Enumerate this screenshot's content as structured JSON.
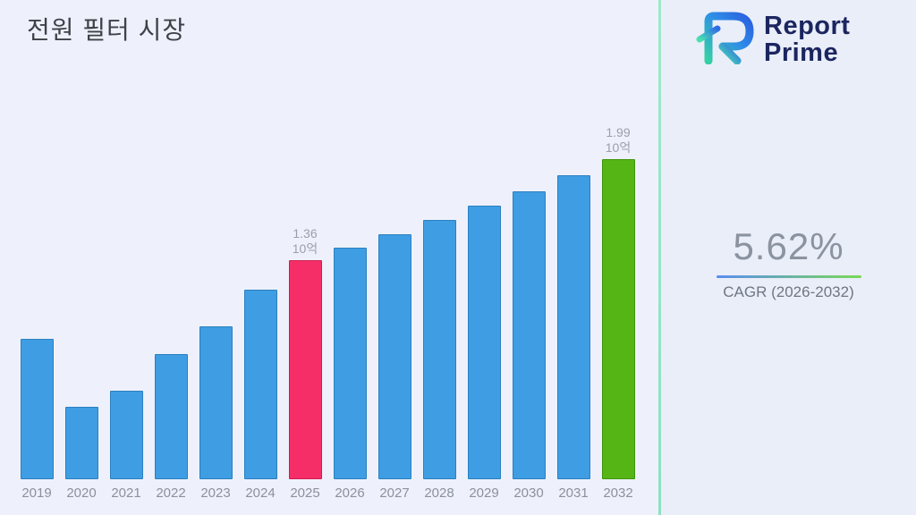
{
  "title": "전원 필터 시장",
  "logo": {
    "line1": "Report",
    "line2": "Prime"
  },
  "stats": {
    "cagr_value": "5.62%",
    "cagr_label": "CAGR (2026-2032)"
  },
  "chart_data": {
    "type": "bar",
    "title": "전원 필터 시장",
    "xlabel": "",
    "ylabel": "",
    "unit": "10억",
    "categories": [
      "2019",
      "2020",
      "2021",
      "2022",
      "2023",
      "2024",
      "2025",
      "2026",
      "2027",
      "2028",
      "2029",
      "2030",
      "2031",
      "2032"
    ],
    "values": [
      0.87,
      0.45,
      0.55,
      0.78,
      0.95,
      1.18,
      1.36,
      1.44,
      1.52,
      1.61,
      1.7,
      1.79,
      1.89,
      1.99
    ],
    "ylim": [
      0,
      2.2
    ],
    "grid": false,
    "legend": "none",
    "highlight_index": 6,
    "final_index": 13,
    "annotations": [
      {
        "index": 6,
        "value": "1.36",
        "unit": "10억"
      },
      {
        "index": 13,
        "value": "1.99",
        "unit": "10억"
      }
    ],
    "colors": {
      "default": "#3f9ee3",
      "default_border": "#2b7fc0",
      "highlight": "#f62e68",
      "highlight_border": "#d11a50",
      "final": "#55b515",
      "final_border": "#3f9408"
    }
  }
}
